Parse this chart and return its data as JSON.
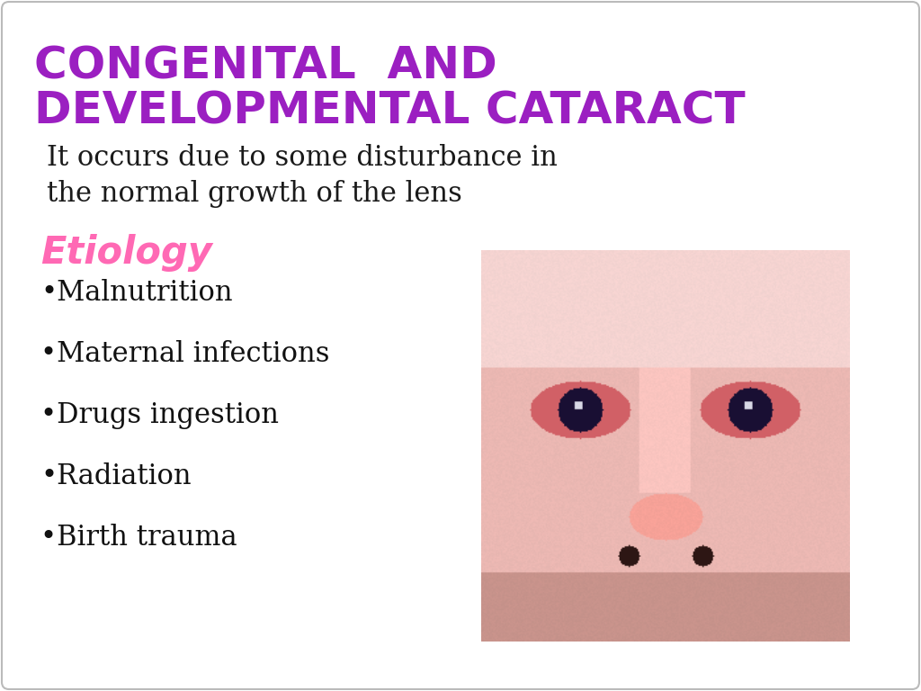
{
  "title_line1": "CONGENITAL  AND",
  "title_line2": "DEVELOPMENTAL CATARACT",
  "title_color": "#9B1FC1",
  "body_line1": "It occurs due to some disturbance in",
  "body_line2": "the normal growth of the lens",
  "body_color": "#1a1a1a",
  "etiology_label": "Etiology",
  "etiology_color": "#FF69B4",
  "bullet_items": [
    "•Malnutrition",
    "•Maternal infections",
    "•Drugs ingestion",
    "•Radiation",
    "•Birth trauma"
  ],
  "bullet_color": "#111111",
  "background_color": "#ffffff",
  "border_color": "#bbbbbb",
  "title_fontsize": 36,
  "body_fontsize": 22,
  "etiology_fontsize": 30,
  "bullet_fontsize": 22
}
